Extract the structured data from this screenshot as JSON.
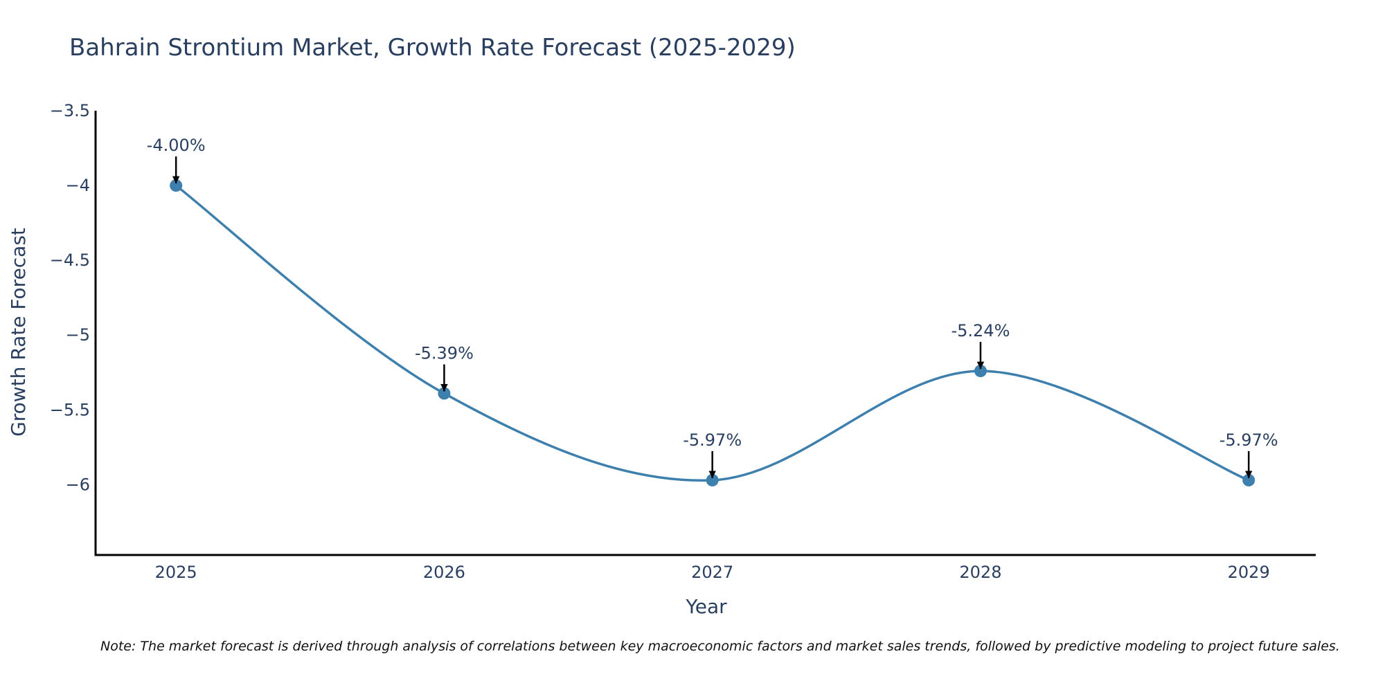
{
  "colors": {
    "line": "#3d7fad",
    "marker": "#3d7fad",
    "text": "#2a3f5f",
    "axis": "#000000",
    "arrow": "#000000",
    "note": "#111111"
  },
  "chart_data": {
    "type": "line",
    "title": "Bahrain Strontium Market, Growth Rate Forecast (2025-2029)",
    "xlabel": "Year",
    "ylabel": "Growth Rate Forecast",
    "categories": [
      "2025",
      "2026",
      "2027",
      "2028",
      "2029"
    ],
    "x": [
      2025,
      2026,
      2027,
      2028,
      2029
    ],
    "values": [
      -4.0,
      -5.39,
      -5.97,
      -5.24,
      -5.97
    ],
    "data_labels": [
      "-4.00%",
      "-5.39%",
      "-5.97%",
      "-5.24%",
      "-5.97%"
    ],
    "ylim": [
      -6.47,
      -3.5
    ],
    "xlim": [
      2024.7,
      2029.25
    ],
    "y_ticks": [
      -3.5,
      -4,
      -4.5,
      -5,
      -5.5,
      -6
    ],
    "y_tick_labels": [
      "−3.5",
      "−4",
      "−4.5",
      "−5",
      "−5.5",
      "−6"
    ],
    "x_tick_labels": [
      "2025",
      "2026",
      "2027",
      "2028",
      "2029"
    ],
    "line_shape": "spline",
    "grid": false,
    "note": "Note: The market forecast is derived through analysis of correlations between key macroeconomic factors and market sales trends, followed by predictive modeling to project future sales."
  }
}
